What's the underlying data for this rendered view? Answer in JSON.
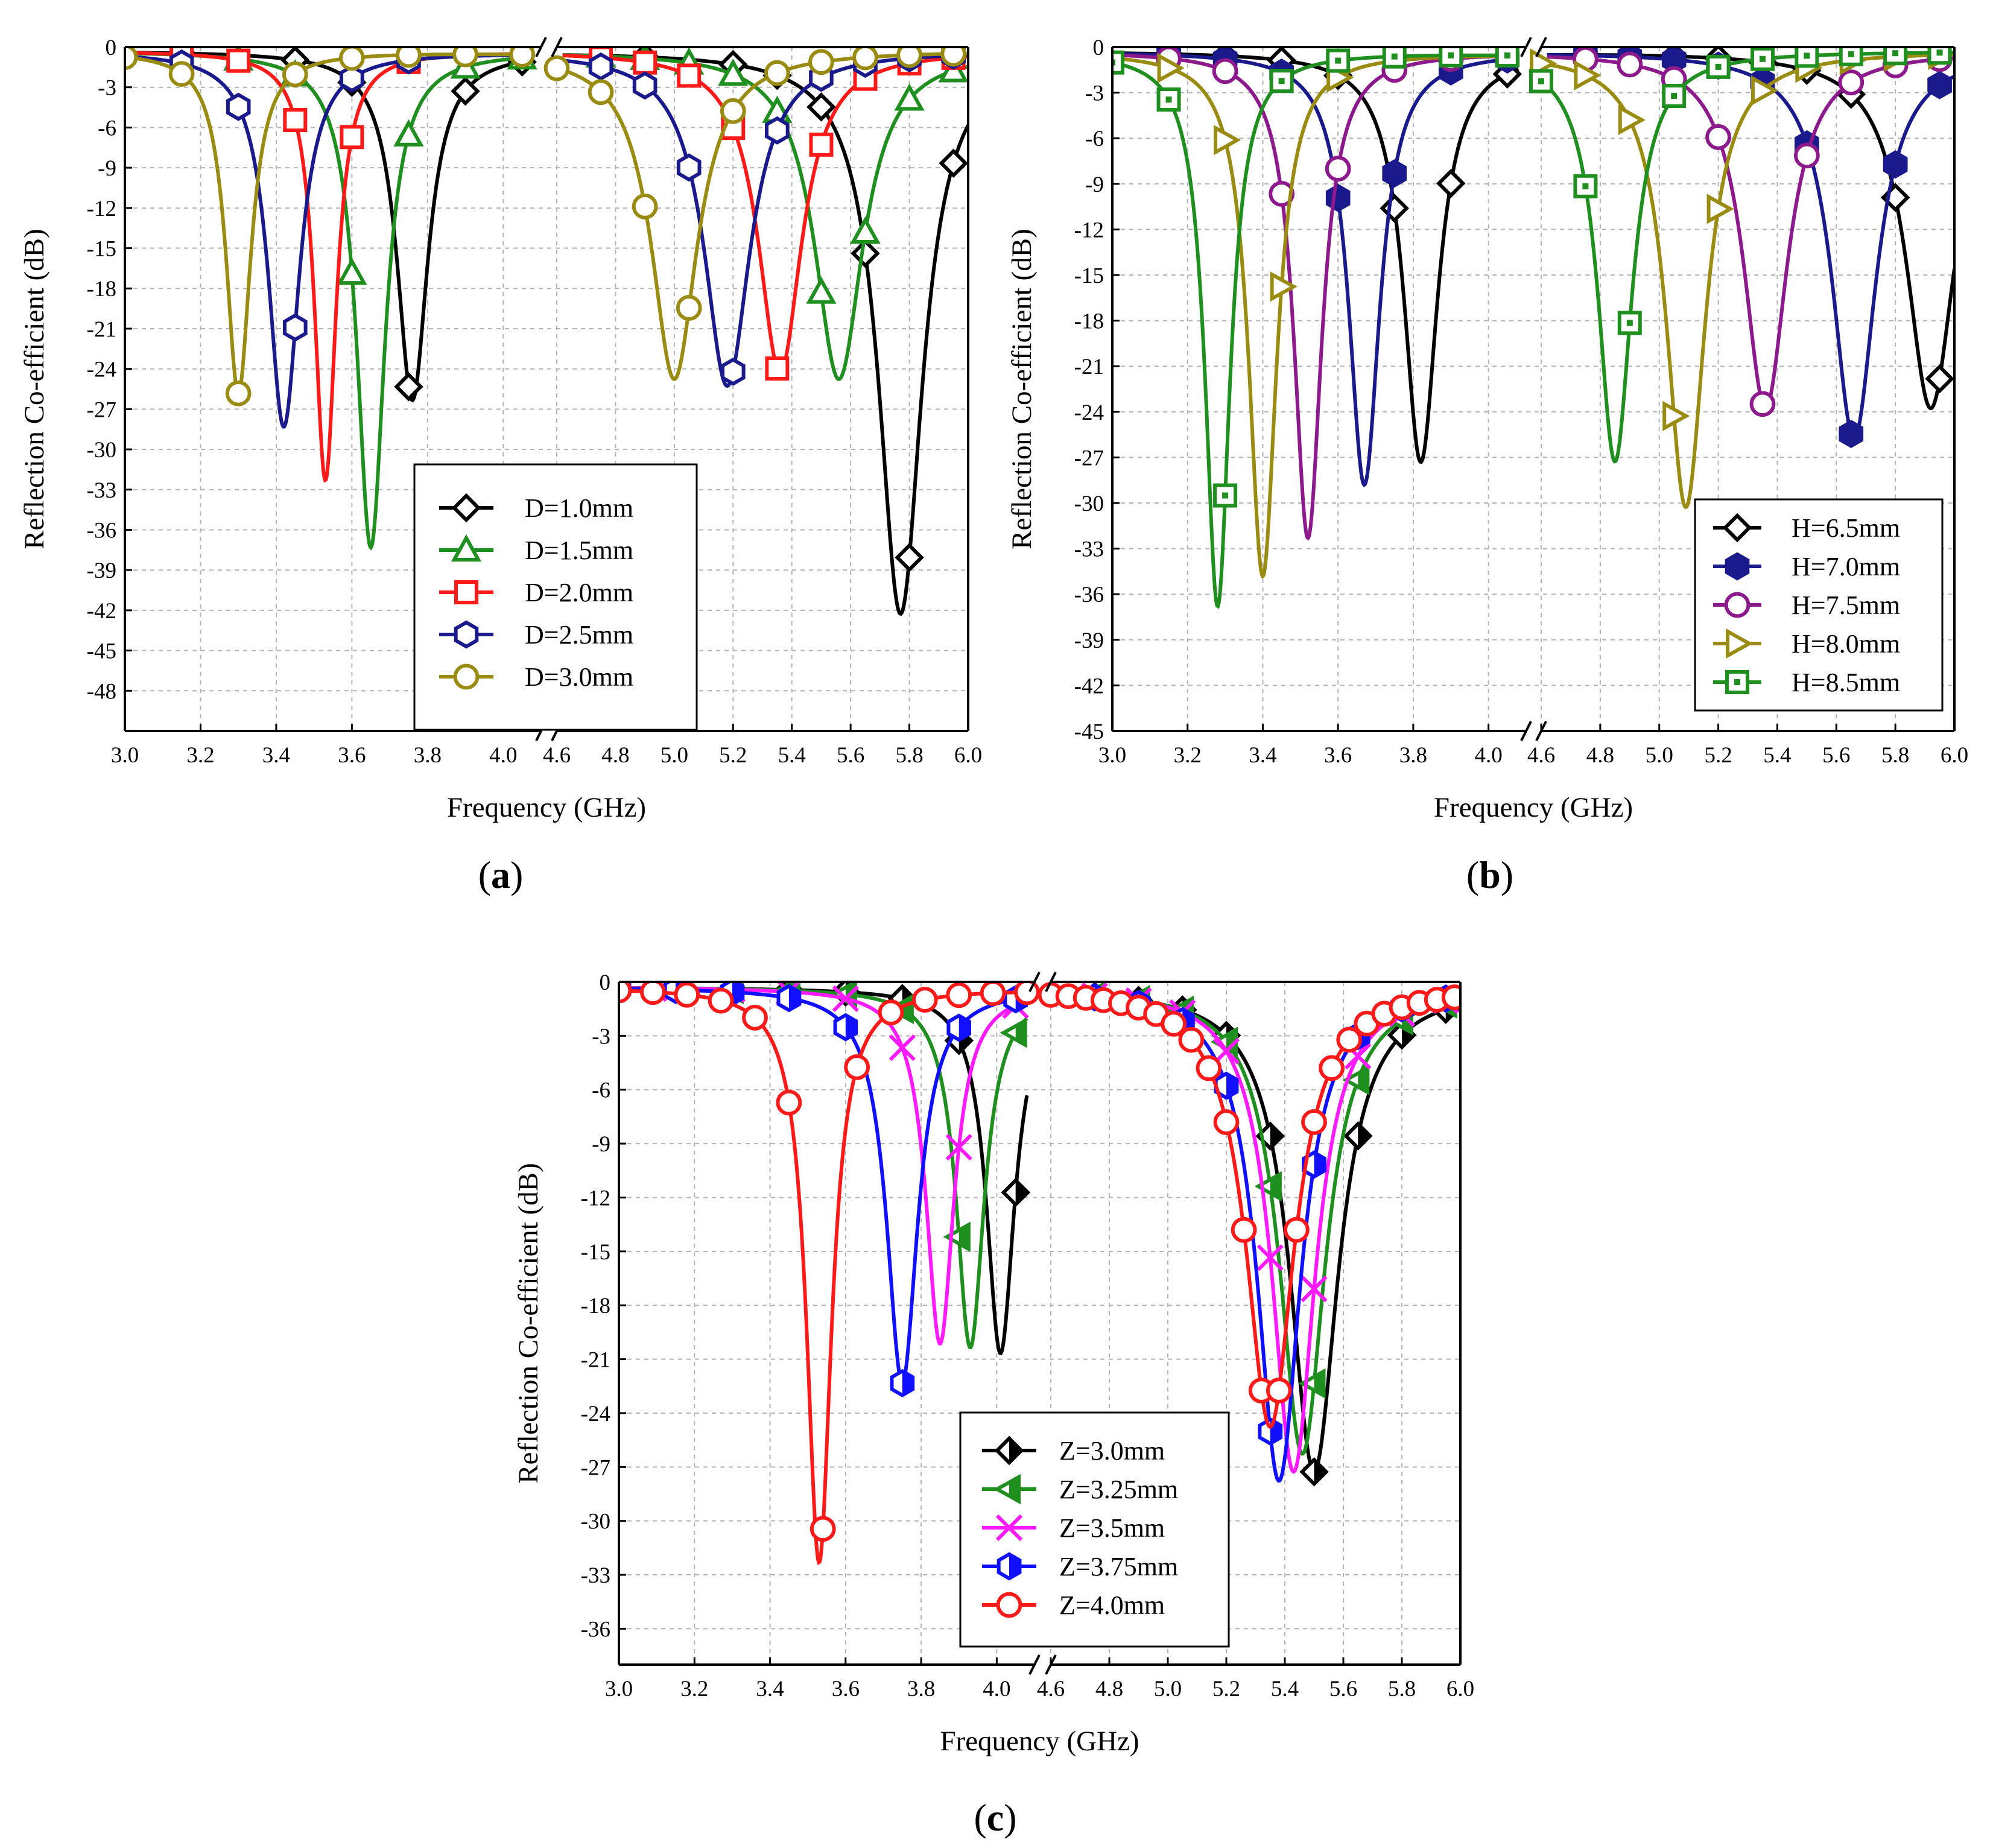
{
  "figure": {
    "captions": [
      "(a)",
      "(b)",
      "(c)"
    ],
    "caption_letters": [
      "a",
      "b",
      "c"
    ]
  },
  "colors": {
    "black": "#000000",
    "green": "#1f8f1f",
    "red": "#ff1a1a",
    "navy": "#1a1a8c",
    "olive": "#9a8c12",
    "blue": "#1010ff",
    "purple": "#8c1a8c",
    "magenta": "#ff1aff",
    "grid": "#b4b4b4"
  },
  "chart_data": [
    {
      "id": "a",
      "type": "line",
      "title": "",
      "xlabel": "Frequency (GHz)",
      "ylabel": "Reflection Co-efficient (dB)",
      "x_segments": [
        [
          3.0,
          4.1
        ],
        [
          4.6,
          6.0
        ]
      ],
      "x_tick_labels": [
        "3.0",
        "3.2",
        "3.4",
        "3.6",
        "3.8",
        "4.0",
        "4.6",
        "4.8",
        "5.0",
        "5.2",
        "5.4",
        "5.6",
        "5.8",
        "6.0"
      ],
      "ylim": [
        -51,
        0
      ],
      "y_ticks": [
        0,
        -3,
        -6,
        -9,
        -12,
        -15,
        -18,
        -21,
        -24,
        -27,
        -30,
        -33,
        -36,
        -39,
        -42,
        -45,
        -48
      ],
      "grid": true,
      "legend_position": "lower-center",
      "series": [
        {
          "name": "D=1.0mm",
          "color": "#000000",
          "marker": "diamond",
          "fill": "none",
          "resonances": [
            {
              "f": 3.76,
              "depth": 26.0,
              "bw": 0.1
            },
            {
              "f": 5.77,
              "depth": 42.0,
              "bw": 0.18
            }
          ],
          "marker_x": [
            3.15,
            3.45,
            3.6,
            3.75,
            3.9,
            4.05,
            4.9,
            5.2,
            5.35,
            5.5,
            5.65,
            5.8,
            5.95
          ]
        },
        {
          "name": "D=1.5mm",
          "color": "#1f8f1f",
          "marker": "triangle",
          "fill": "none",
          "resonances": [
            {
              "f": 3.65,
              "depth": 37.0,
              "bw": 0.09
            },
            {
              "f": 5.56,
              "depth": 24.5,
              "bw": 0.2
            }
          ],
          "marker_x": [
            3.3,
            3.45,
            3.6,
            3.75,
            3.9,
            4.05,
            4.75,
            4.9,
            5.05,
            5.2,
            5.35,
            5.5,
            5.65,
            5.8,
            5.95
          ]
        },
        {
          "name": "D=2.0mm",
          "color": "#ff1a1a",
          "marker": "square",
          "fill": "none",
          "resonances": [
            {
              "f": 3.53,
              "depth": 32.0,
              "bw": 0.07
            },
            {
              "f": 5.36,
              "depth": 24.0,
              "bw": 0.18
            }
          ],
          "marker_x": [
            3.15,
            3.3,
            3.45,
            3.6,
            3.75,
            4.75,
            4.9,
            5.05,
            5.2,
            5.35,
            5.5,
            5.65,
            5.8,
            5.95
          ]
        },
        {
          "name": "D=2.5mm",
          "color": "#1a1a8c",
          "marker": "hexagon",
          "fill": "none",
          "resonances": [
            {
              "f": 3.42,
              "depth": 28.0,
              "bw": 0.1
            },
            {
              "f": 5.18,
              "depth": 25.0,
              "bw": 0.19
            }
          ],
          "marker_x": [
            3.15,
            3.3,
            3.45,
            3.6,
            3.75,
            4.75,
            4.9,
            5.05,
            5.2,
            5.35,
            5.5,
            5.65,
            5.8,
            5.95
          ]
        },
        {
          "name": "D=3.0mm",
          "color": "#9a8c12",
          "marker": "circle",
          "fill": "none",
          "resonances": [
            {
              "f": 3.3,
              "depth": 25.5,
              "bw": 0.08
            },
            {
              "f": 5.0,
              "depth": 24.5,
              "bw": 0.19
            }
          ],
          "marker_x": [
            3.0,
            3.15,
            3.3,
            3.45,
            3.6,
            3.75,
            3.9,
            4.05,
            4.6,
            4.75,
            4.9,
            5.05,
            5.2,
            5.35,
            5.5,
            5.65,
            5.8,
            5.95
          ]
        }
      ]
    },
    {
      "id": "b",
      "type": "line",
      "title": "",
      "xlabel": "Frequency (GHz)",
      "ylabel": "Reflection Co-efficient (dB)",
      "x_segments": [
        [
          3.0,
          4.1
        ],
        [
          4.6,
          6.0
        ]
      ],
      "x_tick_labels": [
        "3.0",
        "3.2",
        "3.4",
        "3.6",
        "3.8",
        "4.0",
        "4.6",
        "4.8",
        "5.0",
        "5.2",
        "5.4",
        "5.6",
        "5.8",
        "6.0"
      ],
      "ylim": [
        -45,
        0
      ],
      "y_ticks": [
        0,
        -3,
        -6,
        -9,
        -12,
        -15,
        -18,
        -21,
        -24,
        -27,
        -30,
        -33,
        -36,
        -39,
        -42,
        -45
      ],
      "grid": true,
      "legend_position": "lower-right",
      "series": [
        {
          "name": "H=6.5mm",
          "color": "#000000",
          "marker": "diamond",
          "fill": "none",
          "resonances": [
            {
              "f": 3.82,
              "depth": 27.0,
              "bw": 0.11
            },
            {
              "f": 5.92,
              "depth": 23.5,
              "bw": 0.2
            }
          ],
          "marker_x": [
            3.15,
            3.3,
            3.45,
            3.6,
            3.75,
            3.9,
            4.05,
            4.75,
            4.9,
            5.05,
            5.2,
            5.35,
            5.5,
            5.65,
            5.8,
            5.95
          ]
        },
        {
          "name": "H=7.0mm",
          "color": "#1a1a8c",
          "marker": "hexagon",
          "fill": "solid",
          "resonances": [
            {
              "f": 3.67,
              "depth": 28.5,
              "bw": 0.1
            },
            {
              "f": 5.66,
              "depth": 25.5,
              "bw": 0.18
            }
          ],
          "marker_x": [
            3.15,
            3.3,
            3.45,
            3.6,
            3.75,
            3.9,
            4.05,
            4.75,
            4.9,
            5.05,
            5.2,
            5.35,
            5.5,
            5.65,
            5.8,
            5.95
          ]
        },
        {
          "name": "H=7.5mm",
          "color": "#8c1a8c",
          "marker": "circle",
          "fill": "none",
          "resonances": [
            {
              "f": 3.52,
              "depth": 32.0,
              "bw": 0.09
            },
            {
              "f": 5.36,
              "depth": 23.5,
              "bw": 0.18
            }
          ],
          "marker_x": [
            3.15,
            3.3,
            3.45,
            3.6,
            3.75,
            3.9,
            4.75,
            4.9,
            5.05,
            5.2,
            5.35,
            5.5,
            5.65,
            5.8,
            5.95
          ]
        },
        {
          "name": "H=8.0mm",
          "color": "#9a8c12",
          "marker": "triangle-right",
          "fill": "none",
          "resonances": [
            {
              "f": 3.4,
              "depth": 34.5,
              "bw": 0.09
            },
            {
              "f": 5.09,
              "depth": 30.0,
              "bw": 0.16
            }
          ],
          "marker_x": [
            3.15,
            3.3,
            3.45,
            3.6,
            4.6,
            4.75,
            4.9,
            5.05,
            5.2,
            5.35,
            5.5,
            5.65,
            5.8,
            5.95
          ]
        },
        {
          "name": "H=8.5mm",
          "color": "#1f8f1f",
          "marker": "square-dot",
          "fill": "none",
          "resonances": [
            {
              "f": 3.28,
              "depth": 36.5,
              "bw": 0.08
            },
            {
              "f": 4.85,
              "depth": 27.0,
              "bw": 0.14
            }
          ],
          "marker_x": [
            3.0,
            3.15,
            3.3,
            3.45,
            3.6,
            3.75,
            3.9,
            4.05,
            4.6,
            4.75,
            4.9,
            5.05,
            5.2,
            5.35,
            5.5,
            5.65,
            5.8,
            5.95
          ]
        }
      ]
    },
    {
      "id": "c",
      "type": "line",
      "title": "",
      "xlabel": "Frequency (GHz)",
      "ylabel": "Reflection Co-efficient (dB)",
      "x_segments": [
        [
          3.0,
          4.1
        ],
        [
          4.6,
          6.0
        ]
      ],
      "x_tick_labels": [
        "3.0",
        "3.2",
        "3.4",
        "3.6",
        "3.8",
        "4.0",
        "4.6",
        "4.8",
        "5.0",
        "5.2",
        "5.4",
        "5.6",
        "5.8",
        "6.0"
      ],
      "ylim": [
        -38,
        0
      ],
      "y_ticks": [
        0,
        -3,
        -6,
        -9,
        -12,
        -15,
        -18,
        -21,
        -24,
        -27,
        -30,
        -33,
        -36
      ],
      "grid": true,
      "legend_position": "lower-right",
      "series": [
        {
          "name": "Z=3.0mm",
          "color": "#000000",
          "marker": "diamond",
          "fill": "half",
          "resonances": [
            {
              "f": 4.01,
              "depth": 20.3,
              "bw": 0.09
            },
            {
              "f": 5.5,
              "depth": 27.0,
              "bw": 0.2
            }
          ],
          "marker_x": [
            3.3,
            3.45,
            3.6,
            3.75,
            3.9,
            4.05,
            4.75,
            4.9,
            5.05,
            5.2,
            5.35,
            5.5,
            5.65,
            5.8,
            5.95
          ]
        },
        {
          "name": "Z=3.25mm",
          "color": "#1f8f1f",
          "marker": "triangle-left",
          "fill": "half",
          "resonances": [
            {
              "f": 3.93,
              "depth": 20.0,
              "bw": 0.09
            },
            {
              "f": 5.46,
              "depth": 26.0,
              "bw": 0.19
            }
          ],
          "marker_x": [
            3.3,
            3.45,
            3.6,
            3.75,
            3.9,
            4.05,
            4.75,
            4.9,
            5.05,
            5.2,
            5.35,
            5.5,
            5.65,
            5.8,
            5.95
          ]
        },
        {
          "name": "Z=3.5mm",
          "color": "#ff1aff",
          "marker": "x",
          "fill": "none",
          "resonances": [
            {
              "f": 3.85,
              "depth": 19.8,
              "bw": 0.09
            },
            {
              "f": 5.43,
              "depth": 27.0,
              "bw": 0.18
            }
          ],
          "marker_x": [
            3.15,
            3.3,
            3.45,
            3.6,
            3.75,
            3.9,
            4.05,
            4.75,
            4.9,
            5.05,
            5.2,
            5.35,
            5.5,
            5.65,
            5.8,
            5.95
          ]
        },
        {
          "name": "Z=3.75mm",
          "color": "#1010ff",
          "marker": "hexagon",
          "fill": "half",
          "resonances": [
            {
              "f": 3.75,
              "depth": 22.0,
              "bw": 0.1
            },
            {
              "f": 5.38,
              "depth": 27.5,
              "bw": 0.18
            }
          ],
          "marker_x": [
            3.0,
            3.15,
            3.3,
            3.45,
            3.6,
            3.75,
            3.9,
            4.05,
            4.75,
            4.9,
            5.05,
            5.2,
            5.35,
            5.5,
            5.65,
            5.8,
            5.95
          ]
        },
        {
          "name": "Z=4.0mm",
          "color": "#ff1a1a",
          "marker": "circle",
          "fill": "none",
          "resonances": [
            {
              "f": 3.53,
              "depth": 32.0,
              "bw": 0.08
            },
            {
              "f": 5.35,
              "depth": 24.5,
              "bw": 0.2
            }
          ],
          "marker_x": [
            3.0,
            3.09,
            3.18,
            3.27,
            3.36,
            3.45,
            3.54,
            3.63,
            3.72,
            3.81,
            3.9,
            3.99,
            4.08,
            4.6,
            4.66,
            4.72,
            4.78,
            4.84,
            4.9,
            4.96,
            5.02,
            5.08,
            5.14,
            5.2,
            5.26,
            5.32,
            5.38,
            5.44,
            5.5,
            5.56,
            5.62,
            5.68,
            5.74,
            5.8,
            5.86,
            5.92,
            5.98
          ]
        }
      ]
    }
  ]
}
